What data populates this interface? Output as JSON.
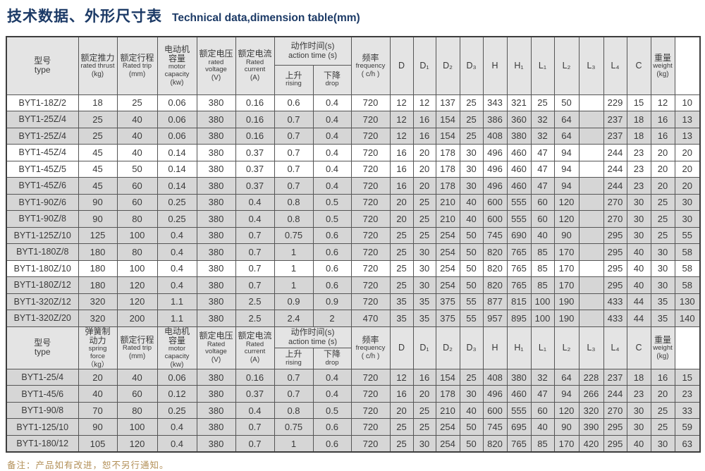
{
  "title": {
    "zh": "技术数据、外形尺寸表",
    "en": "Technical data,dimension table(mm)"
  },
  "note": "备注：产品如有改进，恕不另行通知。",
  "colors": {
    "title_blue": "#1c3a66",
    "note_tan": "#b39058",
    "header_bg": "#e4e4e4",
    "row_shade": "#d6d6d6",
    "row_white": "#ffffff",
    "text": "#3a3a3a"
  },
  "table": {
    "dim_headers": [
      "D",
      "D₁",
      "D₂",
      "D₃",
      "H",
      "H₁",
      "L₁",
      "L₂",
      "L₃",
      "L₄",
      "C",
      "C1"
    ],
    "sections": [
      {
        "header": {
          "type": {
            "zh": "型号",
            "en": "type"
          },
          "force": {
            "zh": "额定推力",
            "en": "rated thrust",
            "unit": "(kg)"
          },
          "trip": {
            "zh": "额定行程",
            "en": "Rated trip",
            "unit": "(mm)"
          },
          "capacity": {
            "zh": "电动机\n容量",
            "en": "motor\ncapacity",
            "unit": "(kw)"
          },
          "voltage": {
            "zh": "额定电压",
            "en": "rated voltage",
            "unit": "(V)"
          },
          "current": {
            "zh": "额定电流",
            "en": "Rated current",
            "unit": "(A)"
          },
          "action": {
            "zh": "动作时间(s)",
            "en": "action time (s)"
          },
          "rising": {
            "zh": "上升",
            "en": "rising"
          },
          "drop": {
            "zh": "下降",
            "en": "drop"
          },
          "frequency": {
            "zh": "频率",
            "en": "frequency",
            "unit": "( c/h )"
          },
          "weight": {
            "zh": "重量",
            "en": "weight",
            "unit": "(kg)"
          }
        },
        "rows": [
          {
            "type": "BYT1-18Z/2",
            "values": [
              "18",
              "25",
              "0.06",
              "380",
              "0.16",
              "0.6",
              "0.4",
              "720",
              "12",
              "12",
              "137",
              "25",
              "343",
              "321",
              "25",
              "50",
              "",
              "229",
              "15",
              "12",
              "10"
            ],
            "shaded": false
          },
          {
            "type": "BYT1-25Z/4",
            "values": [
              "25",
              "40",
              "0.06",
              "380",
              "0.16",
              "0.7",
              "0.4",
              "720",
              "12",
              "16",
              "154",
              "25",
              "386",
              "360",
              "32",
              "64",
              "",
              "237",
              "18",
              "16",
              "13"
            ],
            "shaded": true
          },
          {
            "type": "BYT1-25Z/4",
            "values": [
              "25",
              "40",
              "0.06",
              "380",
              "0.16",
              "0.7",
              "0.4",
              "720",
              "12",
              "16",
              "154",
              "25",
              "408",
              "380",
              "32",
              "64",
              "",
              "237",
              "18",
              "16",
              "13"
            ],
            "shaded": true
          },
          {
            "type": "BYT1-45Z/4",
            "values": [
              "45",
              "40",
              "0.14",
              "380",
              "0.37",
              "0.7",
              "0.4",
              "720",
              "16",
              "20",
              "178",
              "30",
              "496",
              "460",
              "47",
              "94",
              "",
              "244",
              "23",
              "20",
              "20"
            ],
            "shaded": false
          },
          {
            "type": "BYT1-45Z/5",
            "values": [
              "45",
              "50",
              "0.14",
              "380",
              "0.37",
              "0.7",
              "0.4",
              "720",
              "16",
              "20",
              "178",
              "30",
              "496",
              "460",
              "47",
              "94",
              "",
              "244",
              "23",
              "20",
              "20"
            ],
            "shaded": false
          },
          {
            "type": "BYT1-45Z/6",
            "values": [
              "45",
              "60",
              "0.14",
              "380",
              "0.37",
              "0.7",
              "0.4",
              "720",
              "16",
              "20",
              "178",
              "30",
              "496",
              "460",
              "47",
              "94",
              "",
              "244",
              "23",
              "20",
              "20"
            ],
            "shaded": true
          },
          {
            "type": "BYT1-90Z/6",
            "values": [
              "90",
              "60",
              "0.25",
              "380",
              "0.4",
              "0.8",
              "0.5",
              "720",
              "20",
              "25",
              "210",
              "40",
              "600",
              "555",
              "60",
              "120",
              "",
              "270",
              "30",
              "25",
              "30"
            ],
            "shaded": true
          },
          {
            "type": "BYT1-90Z/8",
            "values": [
              "90",
              "80",
              "0.25",
              "380",
              "0.4",
              "0.8",
              "0.5",
              "720",
              "20",
              "25",
              "210",
              "40",
              "600",
              "555",
              "60",
              "120",
              "",
              "270",
              "30",
              "25",
              "30"
            ],
            "shaded": true
          },
          {
            "type": "BYT1-125Z/10",
            "values": [
              "125",
              "100",
              "0.4",
              "380",
              "0.7",
              "0.75",
              "0.6",
              "720",
              "25",
              "25",
              "254",
              "50",
              "745",
              "690",
              "40",
              "90",
              "",
              "295",
              "30",
              "25",
              "55"
            ],
            "shaded": true
          },
          {
            "type": "BYT1-180Z/8",
            "values": [
              "180",
              "80",
              "0.4",
              "380",
              "0.7",
              "1",
              "0.6",
              "720",
              "25",
              "30",
              "254",
              "50",
              "820",
              "765",
              "85",
              "170",
              "",
              "295",
              "40",
              "30",
              "58"
            ],
            "shaded": true
          },
          {
            "type": "BYT1-180Z/10",
            "values": [
              "180",
              "100",
              "0.4",
              "380",
              "0.7",
              "1",
              "0.6",
              "720",
              "25",
              "30",
              "254",
              "50",
              "820",
              "765",
              "85",
              "170",
              "",
              "295",
              "40",
              "30",
              "58"
            ],
            "shaded": false
          },
          {
            "type": "BYT1-180Z/12",
            "values": [
              "180",
              "120",
              "0.4",
              "380",
              "0.7",
              "1",
              "0.6",
              "720",
              "25",
              "30",
              "254",
              "50",
              "820",
              "765",
              "85",
              "170",
              "",
              "295",
              "40",
              "30",
              "58"
            ],
            "shaded": true
          },
          {
            "type": "BYT1-320Z/12",
            "values": [
              "320",
              "120",
              "1.1",
              "380",
              "2.5",
              "0.9",
              "0.9",
              "720",
              "35",
              "35",
              "375",
              "55",
              "877",
              "815",
              "100",
              "190",
              "",
              "433",
              "44",
              "35",
              "130"
            ],
            "shaded": true
          },
          {
            "type": "BYT1-320Z/20",
            "values": [
              "320",
              "200",
              "1.1",
              "380",
              "2.5",
              "2.4",
              "2",
              "470",
              "35",
              "35",
              "375",
              "55",
              "957",
              "895",
              "100",
              "190",
              "",
              "433",
              "44",
              "35",
              "140"
            ],
            "shaded": true
          }
        ]
      },
      {
        "header": {
          "type": {
            "zh": "型号",
            "en": "type"
          },
          "force": {
            "zh": "弹簧制\n动力",
            "en": "spring\nforce",
            "unit": "（kg）"
          },
          "trip": {
            "zh": "额定行程",
            "en": "Rated trip",
            "unit": "(mm)"
          },
          "capacity": {
            "zh": "电动机\n容量",
            "en": "motor\ncapacity",
            "unit": "(kw)"
          },
          "voltage": {
            "zh": "额定电压",
            "en": "Rated voltage",
            "unit": "(V)"
          },
          "current": {
            "zh": "额定电流",
            "en": "Rated current",
            "unit": "(A)"
          },
          "action": {
            "zh": "动作时间(s)",
            "en": "action time (s)"
          },
          "rising": {
            "zh": "上升",
            "en": "rising"
          },
          "drop": {
            "zh": "下降",
            "en": "drop"
          },
          "frequency": {
            "zh": "频率",
            "en": "frequency",
            "unit": "( c/h )"
          },
          "weight": {
            "zh": "重量",
            "en": "weight",
            "unit": "(kg)"
          }
        },
        "rows": [
          {
            "type": "BYT1-25/4",
            "values": [
              "20",
              "40",
              "0.06",
              "380",
              "0.16",
              "0.7",
              "0.4",
              "720",
              "12",
              "16",
              "154",
              "25",
              "408",
              "380",
              "32",
              "64",
              "228",
              "237",
              "18",
              "16",
              "15"
            ],
            "shaded": true
          },
          {
            "type": "BYT1-45/6",
            "values": [
              "40",
              "60",
              "0.12",
              "380",
              "0.37",
              "0.7",
              "0.4",
              "720",
              "16",
              "20",
              "178",
              "30",
              "496",
              "460",
              "47",
              "94",
              "266",
              "244",
              "23",
              "20",
              "23"
            ],
            "shaded": true
          },
          {
            "type": "BYT1-90/8",
            "values": [
              "70",
              "80",
              "0.25",
              "380",
              "0.4",
              "0.8",
              "0.5",
              "720",
              "20",
              "25",
              "210",
              "40",
              "600",
              "555",
              "60",
              "120",
              "320",
              "270",
              "30",
              "25",
              "33"
            ],
            "shaded": true
          },
          {
            "type": "BYT1-125/10",
            "values": [
              "90",
              "100",
              "0.4",
              "380",
              "0.7",
              "0.75",
              "0.6",
              "720",
              "25",
              "25",
              "254",
              "50",
              "745",
              "695",
              "40",
              "90",
              "390",
              "295",
              "30",
              "25",
              "59"
            ],
            "shaded": true
          },
          {
            "type": "BYT1-180/12",
            "values": [
              "105",
              "120",
              "0.4",
              "380",
              "0.7",
              "1",
              "0.6",
              "720",
              "25",
              "30",
              "254",
              "50",
              "820",
              "765",
              "85",
              "170",
              "420",
              "295",
              "40",
              "30",
              "63"
            ],
            "shaded": true
          }
        ]
      }
    ]
  }
}
